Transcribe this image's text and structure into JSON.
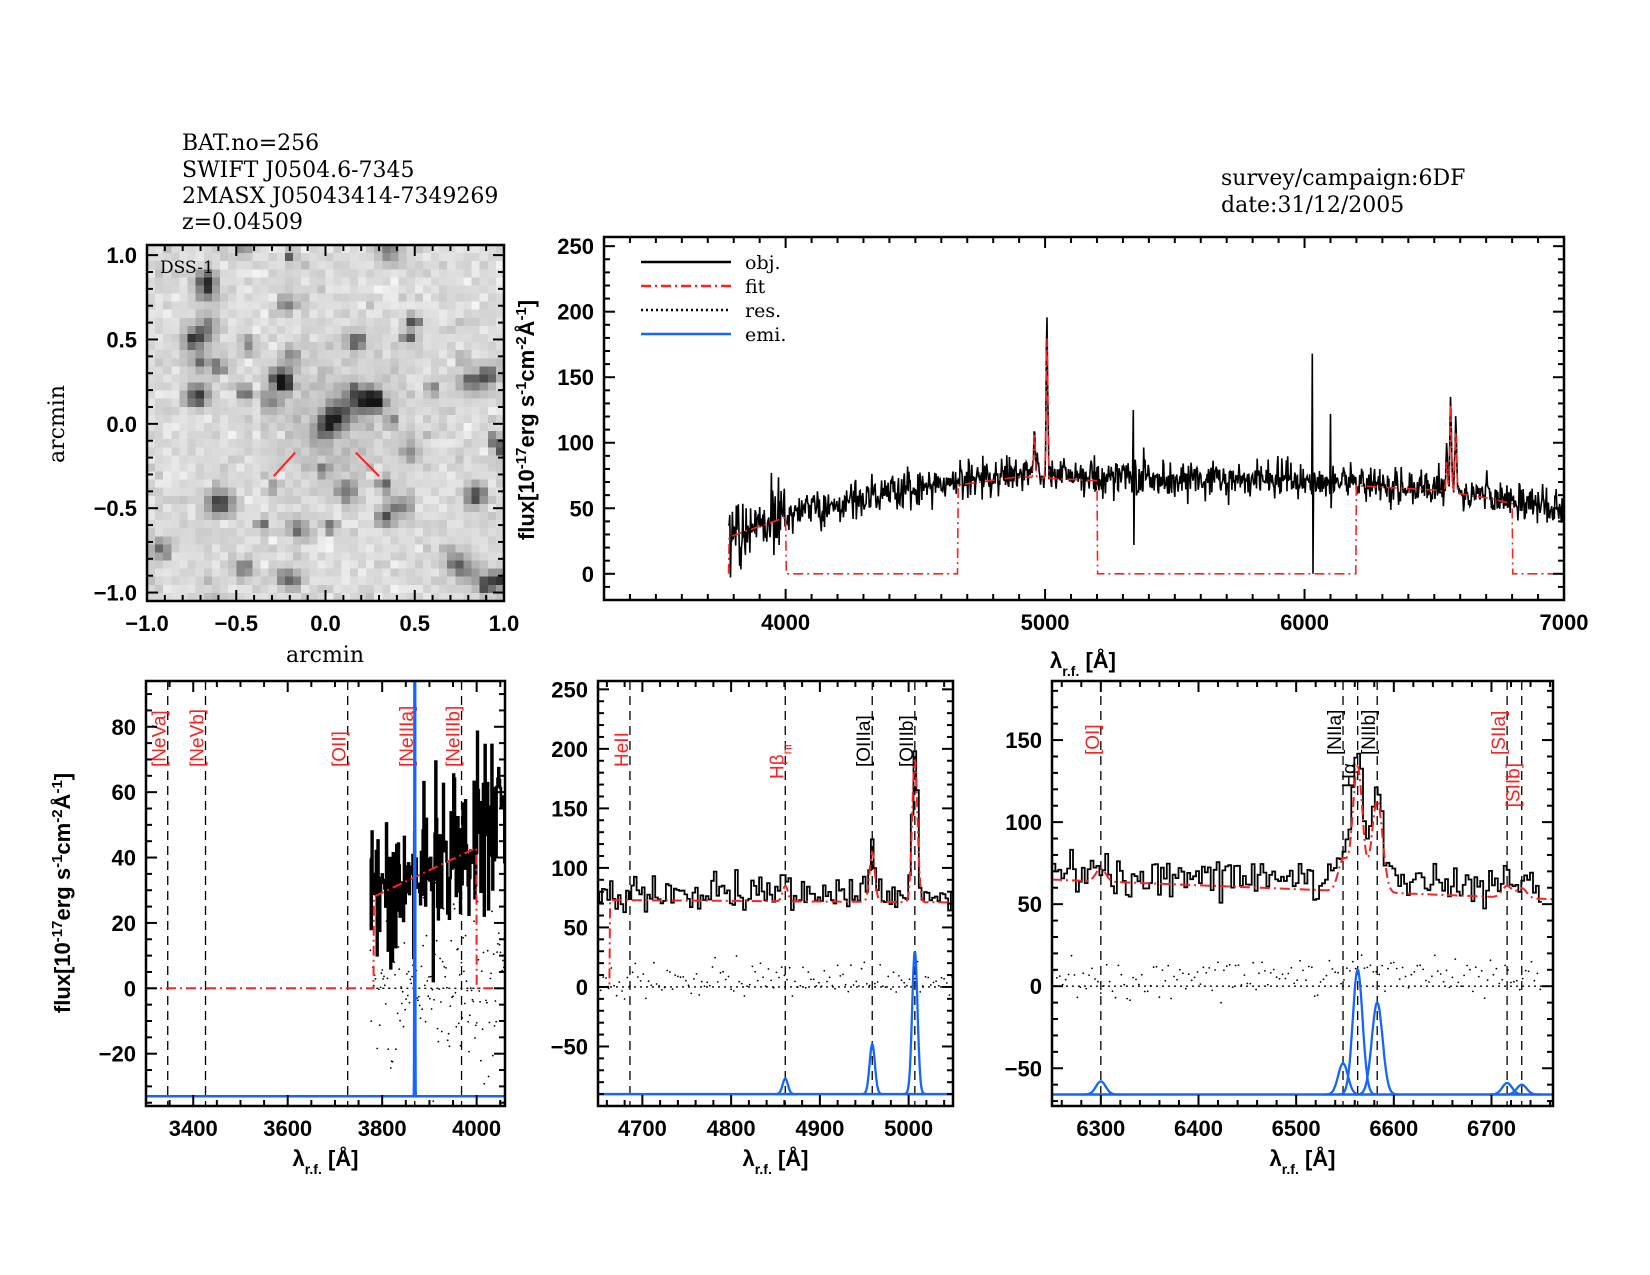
{
  "header": {
    "lines": [
      "BAT.no=256",
      "SWIFT J0504.6-7345",
      "2MASX J05043414-7349269",
      "z=0.04509"
    ],
    "survey": "survey/campaign:6DF",
    "date": "date:31/12/2005"
  },
  "colors": {
    "obj": "#000000",
    "fit": "#ff2020",
    "res": "#000000",
    "emi": "#1565ff",
    "marker": "#ff2020"
  },
  "legend": {
    "position": "top-left",
    "items": [
      {
        "label": "obj.",
        "style": "solid",
        "color": "#000000"
      },
      {
        "label": "fit",
        "style": "dash-dot",
        "color": "#ff2020"
      },
      {
        "label": "res.",
        "style": "dotted",
        "color": "#000000"
      },
      {
        "label": "emi.",
        "style": "solid",
        "color": "#1565ff"
      }
    ]
  },
  "flux_label": [
    {
      "t": "flux[10"
    },
    {
      "t": "-17",
      "sup": true
    },
    {
      "t": "erg s"
    },
    {
      "t": "-1",
      "sup": true
    },
    {
      "t": "cm"
    },
    {
      "t": "-2",
      "sup": true
    },
    {
      "t": "Å"
    },
    {
      "t": "-1",
      "sup": true
    },
    {
      "t": "]"
    }
  ],
  "wave_label": [
    {
      "t": "λ"
    },
    {
      "t": "r.f.",
      "sub": true
    },
    {
      "t": " [Å]"
    }
  ],
  "chart_data": [
    {
      "type": "heatmap",
      "image_label": "DSS-1",
      "xlabel": "arcmin",
      "ylabel": "arcmin",
      "xlim": [
        -1.0,
        1.0
      ],
      "ylim": [
        -1.05,
        1.06
      ],
      "xticks": [
        -1.0,
        -0.5,
        0.0,
        0.5,
        1.0
      ],
      "xticklabels": [
        "−1.0",
        "−0.5",
        "0.0",
        "0.5",
        "1.0"
      ],
      "yticks": [
        -1.0,
        -0.5,
        0.0,
        0.5,
        1.0
      ],
      "yticklabels": [
        "−1.0",
        "−0.5",
        "0.0",
        "0.5",
        "1.0"
      ],
      "colormap": "grayscale-inverted",
      "source_center": [
        0.02,
        0.05
      ],
      "markers": [
        [
          [
            -0.29,
            -0.31
          ],
          [
            -0.17,
            -0.17
          ]
        ],
        [
          [
            0.17,
            -0.17
          ],
          [
            0.3,
            -0.31
          ]
        ]
      ]
    },
    {
      "type": "line",
      "xlim": [
        3300,
        7000
      ],
      "ylim": [
        -20,
        257
      ],
      "xticks": [
        4000,
        5000,
        6000,
        7000
      ],
      "yticks": [
        0,
        50,
        100,
        150,
        200,
        250
      ],
      "obj_range": [
        3780,
        7000
      ],
      "continuum": [
        [
          3780,
          30
        ],
        [
          4000,
          45
        ],
        [
          4300,
          58
        ],
        [
          4600,
          68
        ],
        [
          4900,
          76
        ],
        [
          5200,
          73
        ],
        [
          5600,
          73
        ],
        [
          6000,
          72
        ],
        [
          6300,
          68
        ],
        [
          6500,
          66
        ],
        [
          6700,
          60
        ],
        [
          7000,
          47
        ]
      ],
      "fit_windows": [
        [
          3782,
          4000
        ],
        [
          4663,
          5200
        ],
        [
          6200,
          6800
        ]
      ],
      "emission_lines": [
        {
          "wave": 4959,
          "peak": 115
        },
        {
          "wave": 5007,
          "peak": 195
        },
        {
          "wave": 6548,
          "peak": 90
        },
        {
          "wave": 6563,
          "peak": 140
        },
        {
          "wave": 6583,
          "peak": 116
        }
      ],
      "spikes": [
        {
          "wave": 5340,
          "max": 125,
          "min": 22
        },
        {
          "wave": 6030,
          "max": 168,
          "min": 0
        },
        {
          "wave": 6100,
          "max": 122,
          "min": 50
        }
      ]
    },
    {
      "type": "line",
      "xlim": [
        3300,
        4060
      ],
      "ylim": [
        -36,
        94
      ],
      "xticks": [
        3400,
        3600,
        3800,
        4000
      ],
      "yticks": [
        -20,
        0,
        20,
        40,
        60,
        80
      ],
      "obj_range": [
        3775,
        4060
      ],
      "obj_continuum": [
        [
          3775,
          28
        ],
        [
          3850,
          36
        ],
        [
          3950,
          40
        ],
        [
          4000,
          52
        ],
        [
          4060,
          50
        ]
      ],
      "noise": 12,
      "residual_offset": 0,
      "fit_range": [
        3782,
        4000
      ],
      "fit_continuum": [
        [
          3782,
          28
        ],
        [
          4000,
          43
        ]
      ],
      "emi_baseline": -33,
      "emission": [
        {
          "wave": 3869,
          "amp": 600,
          "sigma": 0.6,
          "in_fit": false
        }
      ],
      "lines": [
        {
          "label": "[NeVa]",
          "wave": 3346,
          "color": "#ff2020"
        },
        {
          "label": "[NeVb]",
          "wave": 3426,
          "color": "#ff2020"
        },
        {
          "label": "[OII]",
          "wave": 3727,
          "color": "#ff2020"
        },
        {
          "label": "[NeIIIa]",
          "wave": 3869,
          "color": "#ff2020"
        },
        {
          "label": "[NeIIIb]",
          "wave": 3968,
          "color": "#ff2020"
        }
      ]
    },
    {
      "type": "line",
      "xlim": [
        4650,
        5050
      ],
      "ylim": [
        -100,
        257
      ],
      "xticks": [
        4700,
        4800,
        4900,
        5000
      ],
      "yticks": [
        -50,
        0,
        50,
        100,
        150,
        200,
        250
      ],
      "obj_range": [
        4650,
        5050
      ],
      "obj_continuum": [
        [
          4650,
          74
        ],
        [
          4850,
          78
        ],
        [
          5050,
          74
        ]
      ],
      "noise": 7,
      "residual_offset": 3,
      "fit_range": [
        4663,
        5050
      ],
      "fit_continuum": [
        [
          4663,
          73
        ],
        [
          5050,
          71
        ]
      ],
      "emi_baseline": -90,
      "emission": [
        {
          "wave": 4861,
          "amp": 13,
          "sigma": 3,
          "in_fit": true
        },
        {
          "wave": 4959,
          "amp": 42,
          "sigma": 3,
          "in_fit": true
        },
        {
          "wave": 5007,
          "amp": 120,
          "sigma": 3,
          "in_fit": true
        }
      ],
      "lines": [
        {
          "label": "HeII",
          "wave": 4686,
          "color": "#ff2020"
        },
        {
          "label": "Hβ",
          "sub": "nr",
          "wave": 4861,
          "color": "#ff2020"
        },
        {
          "label": "[OIIIa]",
          "wave": 4959,
          "color": "#000000"
        },
        {
          "label": "[OIIIb]",
          "wave": 5007,
          "color": "#000000"
        }
      ]
    },
    {
      "type": "line",
      "xlim": [
        6250,
        6763
      ],
      "ylim": [
        -73,
        186
      ],
      "xticks": [
        6300,
        6400,
        6500,
        6600,
        6700
      ],
      "yticks": [
        -50,
        0,
        50,
        100,
        150
      ],
      "obj_range": [
        6252,
        6750
      ],
      "obj_continuum": [
        [
          6252,
          66
        ],
        [
          6400,
          64
        ],
        [
          6500,
          62
        ],
        [
          6535,
          72
        ],
        [
          6620,
          62
        ],
        [
          6700,
          57
        ],
        [
          6750,
          58
        ]
      ],
      "noise": 6,
      "residual_offset": 4,
      "fit_range": [
        6250,
        6763
      ],
      "fit_continuum": [
        [
          6250,
          65
        ],
        [
          6763,
          53
        ]
      ],
      "emi_baseline": -66,
      "emission": [
        {
          "wave": 6300,
          "amp": 8,
          "sigma": 5,
          "in_fit": true
        },
        {
          "wave": 6548,
          "amp": 19,
          "sigma": 5,
          "in_fit": true
        },
        {
          "wave": 6563,
          "amp": 76,
          "sigma": 5,
          "in_fit": true
        },
        {
          "wave": 6583,
          "amp": 56,
          "sigma": 5.5,
          "in_fit": true
        },
        {
          "wave": 6716,
          "amp": 7,
          "sigma": 5,
          "in_fit": true
        },
        {
          "wave": 6731,
          "amp": 6,
          "sigma": 5,
          "in_fit": true
        }
      ],
      "lines": [
        {
          "label": "[OI]",
          "wave": 6300,
          "color": "#ff2020"
        },
        {
          "label": "[NIIa]",
          "wave": 6548,
          "color": "#000000"
        },
        {
          "label": "Hα",
          "wave": 6563,
          "color": "#000000"
        },
        {
          "label": "[NIIb]",
          "wave": 6583,
          "color": "#000000"
        },
        {
          "label": "[SIIa]",
          "wave": 6716,
          "color": "#ff2020"
        },
        {
          "label": "[SIIb]",
          "wave": 6731,
          "color": "#ff2020"
        }
      ]
    }
  ]
}
